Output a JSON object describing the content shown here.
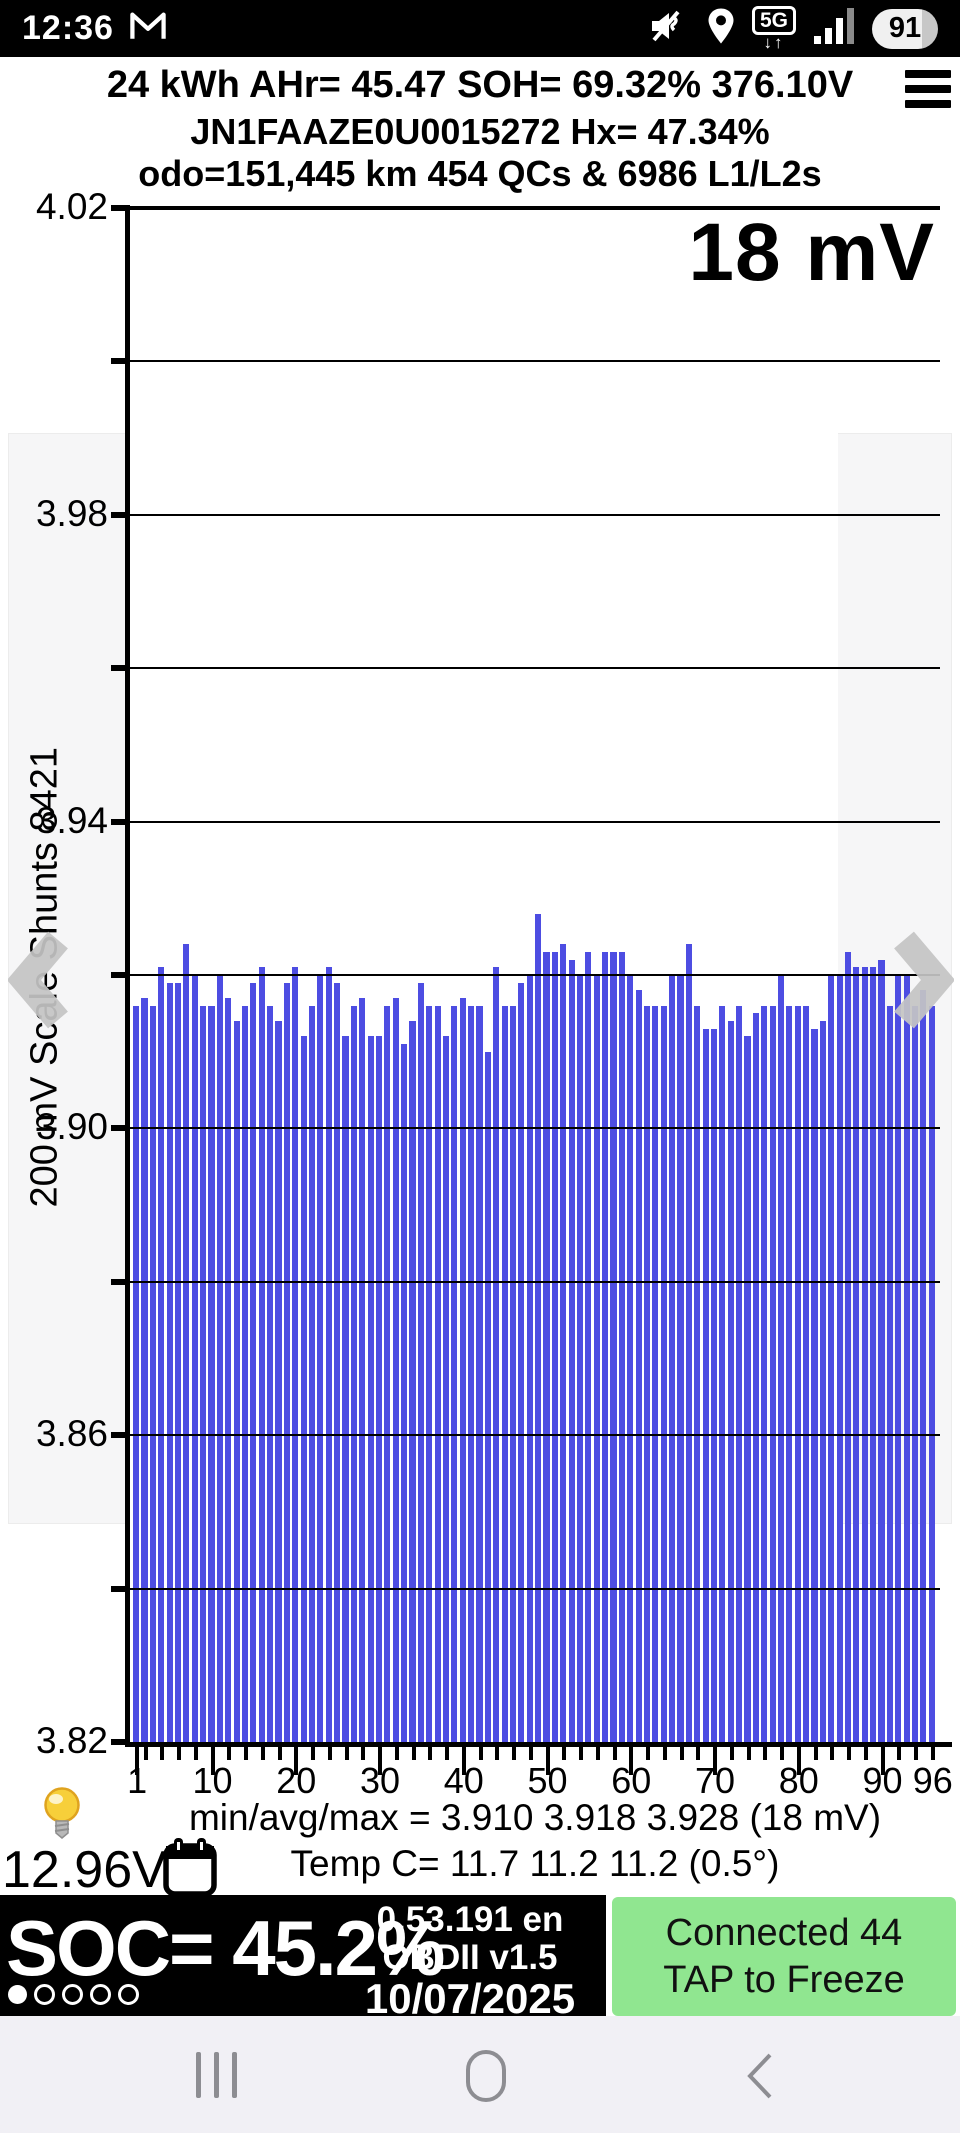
{
  "status_bar": {
    "time": "12:36",
    "network_label": "5G",
    "network_arrows": "↓↑",
    "battery_percent": "91"
  },
  "header": {
    "line1": "24 kWh  AHr= 45.47  SOH= 69.32%  376.10V",
    "line2": "JN1FAAZE0U0015272   Hx= 47.34%",
    "line3": "odo=151,445 km 454 QCs & 6986 L1/L2s"
  },
  "chart_data": {
    "type": "bar",
    "title": "18 mV",
    "ylabel": "200 mV Scale  Shunts 8421",
    "xlabel": "",
    "ylim": [
      3.82,
      4.02
    ],
    "grid_step": 0.02,
    "grid": true,
    "y_tick_labels": [
      "4.02",
      "3.98",
      "3.94",
      "3.90",
      "3.86",
      "3.82"
    ],
    "x_tick_labels": [
      "1",
      "10",
      "20",
      "30",
      "40",
      "50",
      "60",
      "70",
      "80",
      "90",
      "96"
    ],
    "x_tick_cells": [
      1,
      10,
      20,
      30,
      40,
      50,
      60,
      70,
      80,
      90,
      96
    ],
    "cells": 96,
    "bar_color": "#4d4de2",
    "values": [
      3.916,
      3.917,
      3.916,
      3.921,
      3.919,
      3.919,
      3.924,
      3.92,
      3.916,
      3.916,
      3.92,
      3.917,
      3.914,
      3.916,
      3.919,
      3.921,
      3.916,
      3.914,
      3.919,
      3.921,
      3.912,
      3.916,
      3.92,
      3.921,
      3.919,
      3.912,
      3.916,
      3.917,
      3.912,
      3.912,
      3.916,
      3.917,
      3.911,
      3.914,
      3.919,
      3.916,
      3.916,
      3.912,
      3.916,
      3.917,
      3.916,
      3.916,
      3.91,
      3.921,
      3.916,
      3.916,
      3.919,
      3.92,
      3.928,
      3.923,
      3.923,
      3.924,
      3.922,
      3.92,
      3.923,
      3.92,
      3.923,
      3.923,
      3.923,
      3.92,
      3.918,
      3.916,
      3.916,
      3.916,
      3.92,
      3.92,
      3.924,
      3.916,
      3.913,
      3.913,
      3.916,
      3.914,
      3.916,
      3.912,
      3.915,
      3.916,
      3.916,
      3.92,
      3.916,
      3.916,
      3.916,
      3.913,
      3.914,
      3.92,
      3.92,
      3.923,
      3.921,
      3.921,
      3.921,
      3.922,
      3.916,
      3.92,
      3.92,
      3.916,
      3.918,
      3.916
    ],
    "stats_line": "min/avg/max = 3.910 3.918 3.928  (18 mV)",
    "temp_line": "Temp C= 11.7  11.2  11.2  (0.5°)",
    "stats": {
      "min": "3.910",
      "avg": "3.918",
      "max": "3.928",
      "delta_mv": "18 mV"
    }
  },
  "footer": {
    "aux_battery_voltage": "12.96V"
  },
  "bottom_bar": {
    "soc": "SOC= 45.2%",
    "version": "0.53.191 en",
    "obd": "OBDII  v1.5",
    "date": "10/07/2025",
    "connected": "Connected 44",
    "tap": "TAP to Freeze"
  },
  "colors": {
    "bar_blue": "#4d4de2",
    "connected_green": "#90e690",
    "chevron_gray": "#c5c5c5",
    "status_black": "#000000"
  }
}
